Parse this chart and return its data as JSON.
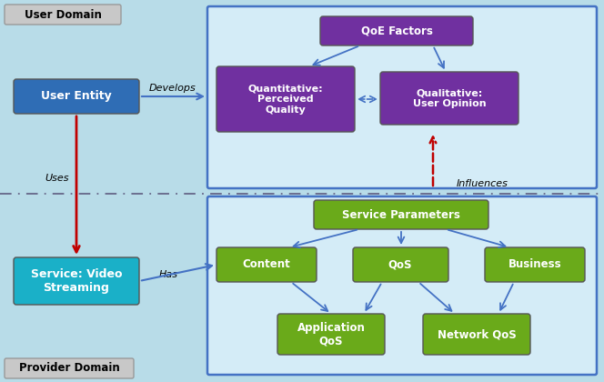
{
  "bg_color": "#b8dce8",
  "user_domain_label": "User Domain",
  "provider_domain_label": "Provider Domain",
  "user_entity_label": "User Entity",
  "user_entity_color": "#2f6db5",
  "service_entity_label": "Service: Video\nStreaming",
  "service_entity_color": "#1ab0c8",
  "qoe_factors_label": "QoE Factors",
  "qoe_factors_color": "#7030a0",
  "quantitative_label": "Quantitative:\nPerceived\nQuality",
  "quantitative_color": "#7030a0",
  "qualitative_label": "Qualitative:\nUser Opinion",
  "qualitative_color": "#7030a0",
  "service_params_label": "Service Parameters",
  "service_params_color": "#6aaa1a",
  "content_label": "Content",
  "content_color": "#6aaa1a",
  "qos_label": "QoS",
  "qos_color": "#6aaa1a",
  "business_label": "Business",
  "business_color": "#6aaa1a",
  "app_qos_label": "Application\nQoS",
  "app_qos_color": "#6aaa1a",
  "net_qos_label": "Network QoS",
  "net_qos_color": "#6aaa1a",
  "arrow_blue": "#4472c4",
  "arrow_red": "#c00000",
  "panel_border": "#4472c4",
  "panel_fill": "#d4ecf7",
  "domain_box_fill": "#c8c8c8",
  "domain_box_edge": "#999999",
  "label_develops": "Develops",
  "label_uses": "Uses",
  "label_has": "Has",
  "label_influences": "Influences",
  "divider_color": "#666688"
}
